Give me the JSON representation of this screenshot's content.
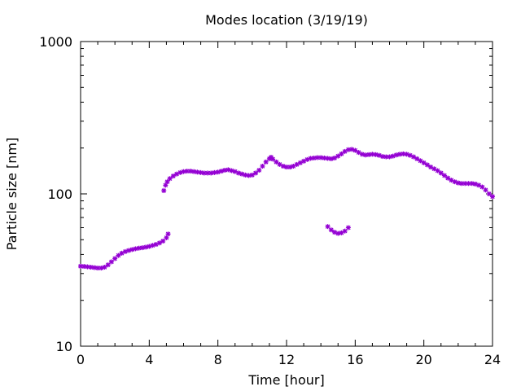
{
  "chart_data": {
    "type": "scatter",
    "title": "Modes location (3/19/19)",
    "xlabel": "Time [hour]",
    "ylabel": "Particle size [nm]",
    "xlim": [
      0,
      24
    ],
    "ylim": [
      10,
      1000
    ],
    "yscale": "log",
    "xticks": [
      "0",
      "4",
      "8",
      "12",
      "16",
      "20",
      "24"
    ],
    "yticks": [
      "10",
      "100",
      "1000"
    ],
    "grid": false,
    "legend": "none",
    "marker_color": "#9400D3",
    "series": [
      {
        "points": [
          [
            0.0,
            33.5
          ],
          [
            0.2,
            33.4
          ],
          [
            0.4,
            33.2
          ],
          [
            0.6,
            33.0
          ],
          [
            0.8,
            32.8
          ],
          [
            1.0,
            32.6
          ],
          [
            1.2,
            32.6
          ],
          [
            1.4,
            33.0
          ],
          [
            1.6,
            34.2
          ],
          [
            1.8,
            35.8
          ],
          [
            2.0,
            37.6
          ],
          [
            2.2,
            39.4
          ],
          [
            2.4,
            40.8
          ],
          [
            2.6,
            41.8
          ],
          [
            2.8,
            42.5
          ],
          [
            3.0,
            43.1
          ],
          [
            3.2,
            43.6
          ],
          [
            3.4,
            44.0
          ],
          [
            3.6,
            44.3
          ],
          [
            3.8,
            44.7
          ],
          [
            4.0,
            45.2
          ],
          [
            4.2,
            45.9
          ],
          [
            4.4,
            46.6
          ],
          [
            4.6,
            47.6
          ],
          [
            4.8,
            49.0
          ],
          [
            5.0,
            51.5
          ],
          [
            5.1,
            54.5
          ],
          [
            4.85,
            105
          ],
          [
            4.95,
            114
          ],
          [
            5.05,
            120
          ],
          [
            5.2,
            126
          ],
          [
            5.4,
            131
          ],
          [
            5.6,
            135
          ],
          [
            5.8,
            138
          ],
          [
            6.0,
            140
          ],
          [
            6.2,
            141
          ],
          [
            6.4,
            141
          ],
          [
            6.6,
            140
          ],
          [
            6.8,
            139
          ],
          [
            7.0,
            138
          ],
          [
            7.2,
            137
          ],
          [
            7.4,
            137
          ],
          [
            7.6,
            137
          ],
          [
            7.8,
            138
          ],
          [
            8.0,
            139
          ],
          [
            8.2,
            141
          ],
          [
            8.4,
            143
          ],
          [
            8.6,
            144
          ],
          [
            8.8,
            142
          ],
          [
            9.0,
            140
          ],
          [
            9.2,
            137
          ],
          [
            9.4,
            135
          ],
          [
            9.6,
            133
          ],
          [
            9.8,
            132
          ],
          [
            10.0,
            133
          ],
          [
            10.2,
            137
          ],
          [
            10.4,
            143
          ],
          [
            10.6,
            152
          ],
          [
            10.8,
            162
          ],
          [
            11.0,
            170
          ],
          [
            11.1,
            174
          ],
          [
            11.2,
            169
          ],
          [
            11.4,
            162
          ],
          [
            11.6,
            156
          ],
          [
            11.8,
            152
          ],
          [
            12.0,
            150
          ],
          [
            12.2,
            150
          ],
          [
            12.4,
            152
          ],
          [
            12.6,
            156
          ],
          [
            12.8,
            160
          ],
          [
            13.0,
            164
          ],
          [
            13.2,
            168
          ],
          [
            13.4,
            171
          ],
          [
            13.6,
            172
          ],
          [
            13.8,
            173
          ],
          [
            14.0,
            173
          ],
          [
            14.2,
            172
          ],
          [
            14.4,
            171
          ],
          [
            14.6,
            170
          ],
          [
            14.8,
            172
          ],
          [
            15.0,
            177
          ],
          [
            15.2,
            183
          ],
          [
            15.4,
            190
          ],
          [
            15.6,
            195
          ],
          [
            15.8,
            196
          ],
          [
            16.0,
            193
          ],
          [
            16.2,
            187
          ],
          [
            16.4,
            182
          ],
          [
            16.6,
            180
          ],
          [
            16.8,
            181
          ],
          [
            17.0,
            182
          ],
          [
            17.2,
            181
          ],
          [
            17.4,
            179
          ],
          [
            17.6,
            176
          ],
          [
            17.8,
            175
          ],
          [
            18.0,
            175
          ],
          [
            18.2,
            177
          ],
          [
            18.4,
            180
          ],
          [
            18.6,
            182
          ],
          [
            18.8,
            183
          ],
          [
            19.0,
            182
          ],
          [
            19.2,
            179
          ],
          [
            19.4,
            175
          ],
          [
            19.6,
            170
          ],
          [
            19.8,
            165
          ],
          [
            20.0,
            160
          ],
          [
            20.2,
            155
          ],
          [
            20.4,
            150
          ],
          [
            20.6,
            146
          ],
          [
            20.8,
            142
          ],
          [
            21.0,
            137
          ],
          [
            21.2,
            132
          ],
          [
            21.4,
            127
          ],
          [
            21.6,
            123
          ],
          [
            21.8,
            120
          ],
          [
            22.0,
            118
          ],
          [
            22.2,
            117
          ],
          [
            22.4,
            117
          ],
          [
            22.6,
            117
          ],
          [
            22.8,
            117
          ],
          [
            23.0,
            116
          ],
          [
            23.2,
            114
          ],
          [
            23.4,
            111
          ],
          [
            23.6,
            106
          ],
          [
            23.8,
            100
          ],
          [
            24.0,
            96
          ],
          [
            14.4,
            61
          ],
          [
            14.6,
            58
          ],
          [
            14.8,
            56
          ],
          [
            15.0,
            55
          ],
          [
            15.2,
            55.5
          ],
          [
            15.4,
            57
          ],
          [
            15.6,
            60
          ]
        ]
      }
    ]
  }
}
